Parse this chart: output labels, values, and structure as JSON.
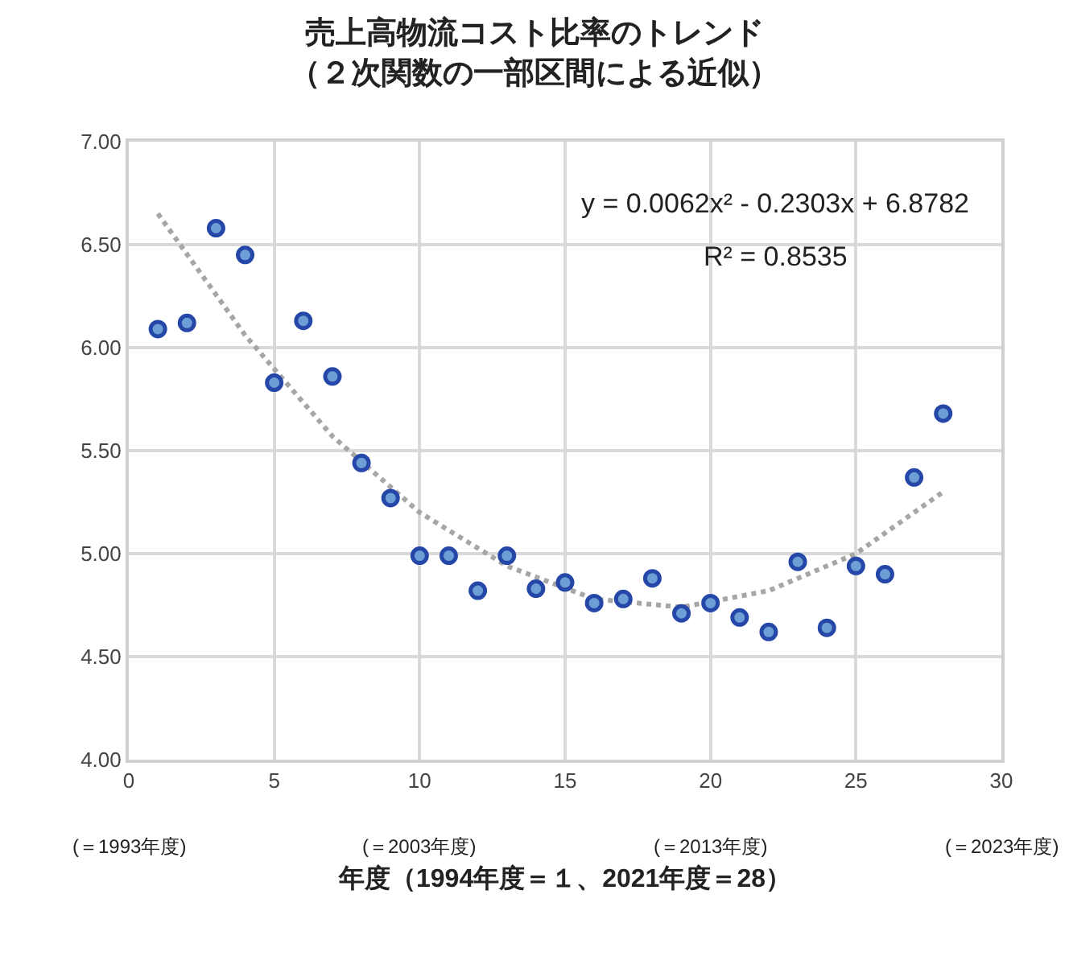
{
  "chart_data": {
    "type": "scatter",
    "title": "売上高物流コスト比率のトレンド",
    "subtitle": "（２次関数の一部区間による近似）",
    "xlabel": "年度（1994年度＝１、2021年度＝28）",
    "x": [
      1,
      2,
      3,
      4,
      5,
      6,
      7,
      8,
      9,
      10,
      11,
      12,
      13,
      14,
      15,
      16,
      17,
      18,
      19,
      20,
      21,
      22,
      23,
      24,
      25,
      26,
      27,
      28
    ],
    "series": [
      {
        "color": "#2447a8",
        "marker": "circle",
        "values": [
          6.09,
          6.12,
          6.58,
          6.45,
          5.83,
          6.13,
          5.86,
          5.44,
          5.27,
          4.99,
          4.99,
          4.82,
          4.99,
          4.83,
          4.86,
          4.76,
          4.78,
          4.88,
          4.71,
          4.76,
          4.69,
          4.62,
          4.96,
          4.64,
          4.94,
          4.9,
          5.37,
          5.68
        ]
      },
      {
        "type": "line",
        "color": "#a6a6a6",
        "line_style": "dotted",
        "marker": "none",
        "x": [
          1,
          4,
          7,
          10,
          13,
          16,
          19,
          22,
          25,
          28
        ],
        "values": [
          6.65,
          6.06,
          5.57,
          5.2,
          4.94,
          4.78,
          4.74,
          4.82,
          5.0,
          5.3
        ]
      }
    ],
    "xlim": [
      0,
      30
    ],
    "xticks": [
      0,
      5,
      10,
      15,
      20,
      25,
      30
    ],
    "ylim": [
      4,
      7
    ],
    "yticks": [
      {
        "value": 4,
        "label": "4.00"
      },
      {
        "value": 4.5,
        "label": "4.50"
      },
      {
        "value": 5,
        "label": "5.00"
      },
      {
        "value": 5.5,
        "label": "5.50"
      },
      {
        "value": 6,
        "label": "6.00"
      },
      {
        "value": 6.5,
        "label": "6.50"
      },
      {
        "value": 7,
        "label": "7.00"
      }
    ],
    "grid": true,
    "annotations": [
      "y = 0.0062x² - 0.2303x + 6.8782",
      "R² = 0.8535",
      "(＝1993年度)",
      "(＝2003年度)",
      "(＝2013年度)",
      "(＝2023年度)"
    ]
  }
}
